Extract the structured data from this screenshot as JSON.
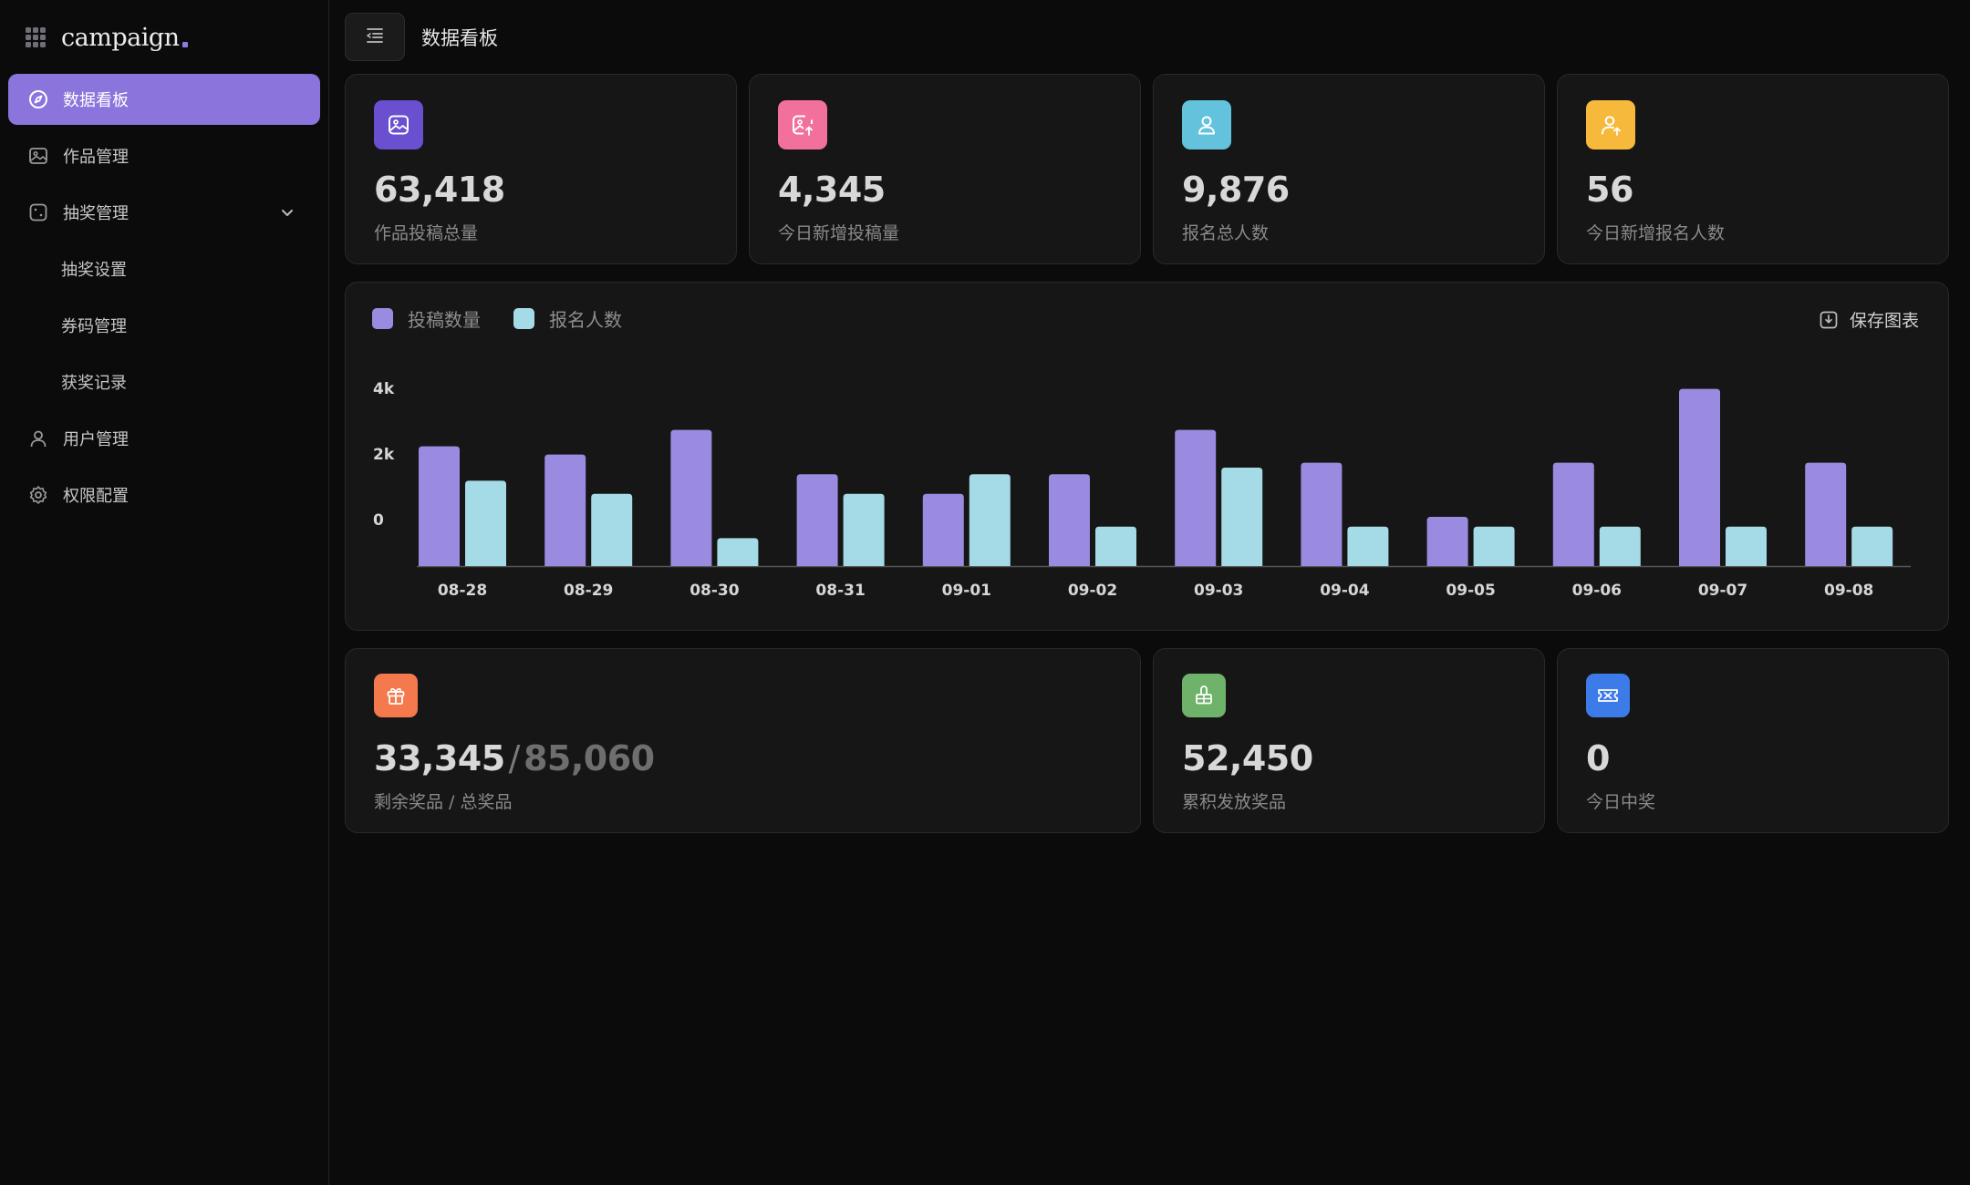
{
  "brand": {
    "name": "campaign"
  },
  "sidebar": {
    "items": [
      {
        "label": "数据看板",
        "icon": "compass-icon",
        "active": true
      },
      {
        "label": "作品管理",
        "icon": "image-icon"
      },
      {
        "label": "抽奖管理",
        "icon": "dice-icon",
        "expanded": true,
        "children": [
          "抽奖设置",
          "券码管理",
          "获奖记录"
        ]
      },
      {
        "label": "用户管理",
        "icon": "user-icon"
      },
      {
        "label": "权限配置",
        "icon": "gear-icon"
      }
    ]
  },
  "header": {
    "title": "数据看板"
  },
  "stats": [
    {
      "value": "63,418",
      "label": "作品投稿总量",
      "icon": "image-icon",
      "color": "#6a4fd0"
    },
    {
      "value": "4,345",
      "label": "今日新增投稿量",
      "icon": "image-upload-icon",
      "color": "#f2709c"
    },
    {
      "value": "9,876",
      "label": "报名总人数",
      "icon": "user-icon",
      "color": "#63c3dc"
    },
    {
      "value": "56",
      "label": "今日新增报名人数",
      "icon": "user-add-icon",
      "color": "#f6b93b"
    }
  ],
  "chart": {
    "save_label": "保存图表",
    "legend": [
      {
        "name": "投稿数量",
        "color": "#9a8ae0"
      },
      {
        "name": "报名人数",
        "color": "#a5dbe6"
      }
    ]
  },
  "chart_data": {
    "type": "bar",
    "categories": [
      "08-28",
      "08-29",
      "08-30",
      "08-31",
      "09-01",
      "09-02",
      "09-03",
      "09-04",
      "09-05",
      "09-06",
      "09-07",
      "09-08"
    ],
    "series": [
      {
        "name": "投稿数量",
        "values": [
          3650,
          3400,
          4150,
          2800,
          2200,
          2800,
          4150,
          3150,
          1500,
          3150,
          5400,
          3150
        ]
      },
      {
        "name": "报名人数",
        "values": [
          2600,
          2200,
          850,
          2200,
          2800,
          1200,
          3000,
          1200,
          1200,
          1200,
          1200,
          1200
        ]
      }
    ],
    "yticks": [
      "4k",
      "2k",
      "0"
    ],
    "colors": [
      "#9a8ae0",
      "#a5dbe6"
    ]
  },
  "prizes": {
    "remaining": {
      "value": "33,345",
      "total": "85,060",
      "separator": "/",
      "label": "剩余奖品 / 总奖品",
      "icon": "gift-icon",
      "color": "#f47a4e"
    },
    "issued": {
      "value": "52,450",
      "label": "累积发放奖品",
      "icon": "gift-box-icon",
      "color": "#6fb36a"
    },
    "today": {
      "value": "0",
      "label": "今日中奖",
      "icon": "ticket-icon",
      "color": "#3d7be8"
    }
  }
}
